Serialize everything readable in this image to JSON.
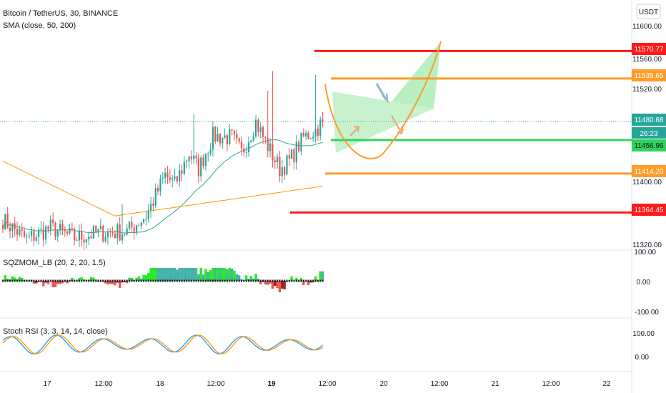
{
  "header": {
    "title": "Bitcoin / TetherUS, 30, BINANCE",
    "indicator": "SMA (close, 50, 200)"
  },
  "currency": "USDT",
  "price_axis": {
    "ticks": [
      "11600.00",
      "11560.00",
      "11520.00",
      "11400.00",
      "11320.00"
    ]
  },
  "price_tags": {
    "current": "11480.68",
    "countdown": "26:23",
    "support_green": "11456.96"
  },
  "levels": [
    {
      "label": "11570.77",
      "value": 11570.77,
      "color": "#ff1a1a"
    },
    {
      "label": "11535.65",
      "value": 11535.65,
      "color": "#ff9b29"
    },
    {
      "label": "11414.20",
      "value": 11414.2,
      "color": "#ff9b29"
    },
    {
      "label": "11364.45",
      "value": 11364.45,
      "color": "#ff1a1a"
    }
  ],
  "support_level": {
    "value": 11456.96,
    "color": "#2fd35a"
  },
  "time_axis": [
    "17",
    "12:00",
    "18",
    "12:00",
    "19",
    "12:00",
    "20",
    "12:00",
    "21",
    "12:00",
    "22"
  ],
  "momentum_panel": {
    "title": "SQZMOM_LB (20, 2, 20, 1.5)",
    "ticks": [
      "100.00",
      "0.00",
      "-100.00"
    ]
  },
  "rsi_panel": {
    "title": "Stoch RSI (3, 3, 14, 14, close)",
    "ticks": [
      "100.00",
      "0.00"
    ]
  },
  "colors": {
    "up": "#26a69a",
    "down": "#ef5350",
    "sma50": "#26a69a",
    "sma200": "#ff9800",
    "rsi_k": "#2196f3",
    "rsi_d": "#ff9800",
    "cup_line": "#ff9b29",
    "triangle_fill": "#9be8a6"
  },
  "chart_data": {
    "type": "candlestick",
    "symbol": "Bitcoin / TetherUS",
    "interval": "30",
    "exchange": "BINANCE",
    "ylim": [
      11310,
      11620
    ],
    "current_price": 11480.68,
    "sma_50_end": 11454,
    "sma_200_end": 11398,
    "anchors": [
      {
        "t": 0,
        "p": 11355
      },
      {
        "t": 10,
        "p": 11330
      },
      {
        "t": 20,
        "p": 11345
      },
      {
        "t": 30,
        "p": 11332
      },
      {
        "t": 40,
        "p": 11338
      },
      {
        "t": 52,
        "p": 11340
      },
      {
        "t": 60,
        "p": 11360
      },
      {
        "t": 68,
        "p": 11412
      },
      {
        "t": 72,
        "p": 11400
      },
      {
        "t": 78,
        "p": 11440
      },
      {
        "t": 82,
        "p": 11420
      },
      {
        "t": 88,
        "p": 11462
      },
      {
        "t": 96,
        "p": 11460
      },
      {
        "t": 100,
        "p": 11440
      },
      {
        "t": 106,
        "p": 11480
      },
      {
        "t": 110,
        "p": 11455
      },
      {
        "t": 116,
        "p": 11420
      },
      {
        "t": 120,
        "p": 11430
      },
      {
        "t": 126,
        "p": 11460
      },
      {
        "t": 131,
        "p": 11470
      },
      {
        "t": 134,
        "p": 11480
      }
    ]
  }
}
